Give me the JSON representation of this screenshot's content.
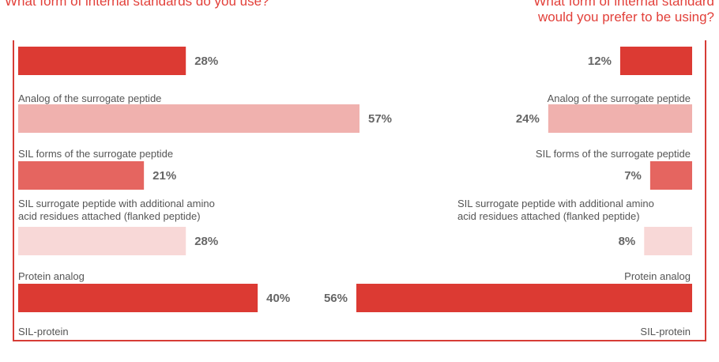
{
  "titles": {
    "left": "What form of internal standards do you use?",
    "right": "What form of internal standard\nwould you prefer to be using?"
  },
  "chart_data": [
    {
      "type": "bar",
      "orientation": "horizontal",
      "title": "What form of internal standards do you use?",
      "categories": [
        "Analog of the surrogate peptide",
        "SIL forms of the surrogate peptide",
        "SIL surrogate peptide with additional amino\nacid residues attached (flanked peptide)",
        "Protein analog",
        "SIL-protein"
      ],
      "values": [
        28,
        57,
        21,
        28,
        40
      ],
      "value_labels": [
        "28%",
        "57%",
        "21%",
        "28%",
        "40%"
      ],
      "unit": "%",
      "colors": [
        "#dc3a33",
        "#f0b1ae",
        "#e56560",
        "#f8d8d7",
        "#dc3a33"
      ],
      "xlim": [
        0,
        57
      ]
    },
    {
      "type": "bar",
      "orientation": "horizontal",
      "title": "What form of internal standard\nwould you prefer to be using?",
      "categories": [
        "Analog of the surrogate peptide",
        "SIL forms of the surrogate peptide",
        "SIL surrogate peptide with additional amino\nacid residues attached (flanked peptide)",
        "Protein analog",
        "SIL-protein"
      ],
      "values": [
        12,
        24,
        7,
        8,
        56
      ],
      "value_labels": [
        "12%",
        "24%",
        "7%",
        "8%",
        "56%"
      ],
      "unit": "%",
      "colors": [
        "#dc3a33",
        "#f0b1ae",
        "#e56560",
        "#f8d8d7",
        "#dc3a33"
      ],
      "xlim": [
        0,
        56
      ]
    }
  ]
}
